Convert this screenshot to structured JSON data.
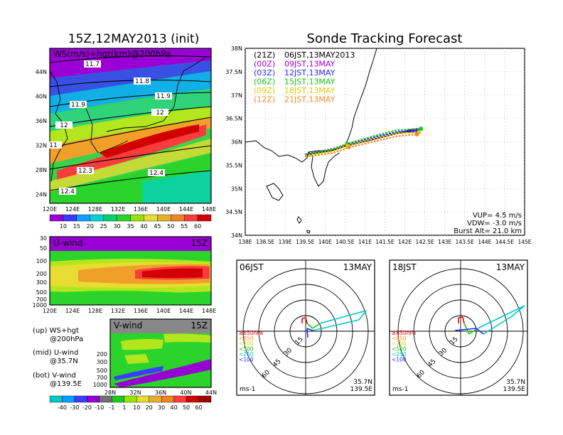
{
  "left": {
    "title": "15Z,12MAY2013 (init)",
    "map_label": "WS(m/s)+hgt(km)@200hPa",
    "lat_ticks": [
      "44N",
      "40N",
      "36N",
      "32N",
      "28N",
      "24N"
    ],
    "lon_ticks": [
      "120E",
      "124E",
      "128E",
      "132E",
      "136E",
      "140E",
      "144E",
      "148E"
    ],
    "contour_labels": [
      "11.7",
      "11.8",
      "11.9",
      "11.9",
      "12",
      "12",
      "12.3",
      "12.4",
      "12.4",
      "11"
    ],
    "colorbar_ws": {
      "labels": [
        "10",
        "15",
        "20",
        "25",
        "30",
        "35",
        "40",
        "45",
        "50",
        "55",
        "60"
      ],
      "colors": [
        "#9a00d6",
        "#3a3aff",
        "#10a0ff",
        "#00d2d2",
        "#00d26e",
        "#2ad42a",
        "#9ae000",
        "#e6dc32",
        "#e6af2d",
        "#f08228",
        "#fa3c3c",
        "#d20000"
      ]
    },
    "uwind": {
      "label": "U-wind",
      "time": "15Z",
      "y_ticks": [
        "30",
        "50",
        "100",
        "200",
        "300",
        "500",
        "700",
        "1000"
      ],
      "x_ticks": [
        "120E",
        "124E",
        "128E",
        "132E",
        "136E",
        "140E",
        "144E",
        "148E"
      ]
    },
    "vwind": {
      "label": "V-wind",
      "time": "15Z",
      "y_ticks": [
        "200",
        "300",
        "500",
        "700",
        "1000"
      ],
      "x_ticks": [
        "28N",
        "32N",
        "36N",
        "40N",
        "44N"
      ]
    },
    "legend_lines": [
      "(up) WS+hgt",
      "@200hPa",
      "(mid) U-wind",
      "@35.7N",
      "(bot) V-wind",
      "@139.5E"
    ],
    "colorbar_uv": {
      "labels": [
        "-40",
        "-30",
        "-20",
        "-10",
        "-1",
        "1",
        "10",
        "20",
        "30",
        "40",
        "50",
        "60"
      ],
      "colors": [
        "#00c8c8",
        "#00a0ff",
        "#3c3cff",
        "#9600d2",
        "#707070",
        "#1ec81e",
        "#96e600",
        "#e6dc32",
        "#e6af2d",
        "#f08228",
        "#fa3c3c",
        "#d20000"
      ]
    }
  },
  "tracking": {
    "title": "Sonde Tracking Forecast",
    "lat_ticks": [
      "38N",
      "37.5N",
      "37N",
      "36.5N",
      "36N",
      "35.5N",
      "35N",
      "34.5N",
      "34N"
    ],
    "lon_ticks": [
      "138E",
      "138.5E",
      "139E",
      "139.5E",
      "140E",
      "140.5E",
      "141E",
      "141.5E",
      "142E",
      "142.5E",
      "143E",
      "143.5E",
      "144E",
      "144.5E",
      "145E"
    ],
    "legend": [
      {
        "code": "(21Z)",
        "time": "06JST,13MAY2013",
        "color": "#000000"
      },
      {
        "code": "(00Z)",
        "time": "09JST,13MAY",
        "color": "#a000c8"
      },
      {
        "code": "(03Z)",
        "time": "12JST,13MAY",
        "color": "#2828ff"
      },
      {
        "code": "(06Z)",
        "time": "15JST,13MAY",
        "color": "#14c814"
      },
      {
        "code": "(09Z)",
        "time": "18JST,13MAY",
        "color": "#e6c800"
      },
      {
        "code": "(12Z)",
        "time": "21JST,13MAY",
        "color": "#f08c28"
      }
    ],
    "vup": "VUP= 4.5 m/s",
    "vdw": "VDW= -3.0 m/s",
    "burst": "Burst Alt= 21.0 km"
  },
  "chart_data": {
    "type": "line",
    "title": "Sonde Tracking Forecast",
    "xlim": [
      138,
      145
    ],
    "ylim": [
      34,
      38
    ],
    "series": [
      {
        "name": "06JST,13MAY2013",
        "x": [
          139.5,
          140.2,
          140.55,
          141.2,
          141.8,
          142.1
        ],
        "y": [
          35.72,
          35.82,
          35.92,
          36.05,
          36.18,
          36.23
        ]
      },
      {
        "name": "09JST,13MAY",
        "x": [
          139.5,
          140.2,
          140.55,
          141.2,
          141.8,
          142.2
        ],
        "y": [
          35.73,
          35.84,
          35.94,
          36.07,
          36.2,
          36.24
        ]
      },
      {
        "name": "12JST,13MAY",
        "x": [
          139.5,
          140.2,
          140.55,
          141.2,
          141.8,
          142.3
        ],
        "y": [
          35.73,
          35.85,
          35.95,
          36.09,
          36.21,
          36.25
        ]
      },
      {
        "name": "15JST,13MAY",
        "x": [
          139.5,
          140.2,
          140.55,
          141.2,
          141.8,
          142.4
        ],
        "y": [
          35.72,
          35.84,
          35.96,
          36.12,
          36.25,
          36.28
        ]
      },
      {
        "name": "18JST,13MAY",
        "x": [
          139.5,
          140.2,
          140.55,
          141.2,
          141.8,
          142.35
        ],
        "y": [
          35.7,
          35.8,
          35.92,
          36.06,
          36.18,
          36.2
        ]
      },
      {
        "name": "21JST,13MAY",
        "x": [
          139.5,
          140.2,
          140.6,
          141.2,
          141.8,
          142.3
        ],
        "y": [
          35.68,
          35.76,
          35.88,
          36.0,
          36.12,
          36.16
        ]
      }
    ]
  },
  "hodographs": [
    {
      "time": "06JST",
      "date": "13MAY",
      "lat": "35.7N",
      "lon": "139.5E",
      "unit": "ms-1"
    },
    {
      "time": "18JST",
      "date": "13MAY",
      "lat": "35.7N",
      "lon": "139.5E",
      "unit": "ms-1"
    }
  ],
  "hodo_rings": [
    "15",
    "30",
    "45",
    "60"
  ],
  "hodo_legend": [
    {
      "label": "≥850hPa",
      "color": "#e60000"
    },
    {
      "label": "<850",
      "color": "#f08c28"
    },
    {
      "label": "<700",
      "color": "#e6c800"
    },
    {
      "label": "<500",
      "color": "#14c814"
    },
    {
      "label": "<250",
      "color": "#00c8c8"
    },
    {
      "label": "<100",
      "color": "#2828ff"
    }
  ]
}
